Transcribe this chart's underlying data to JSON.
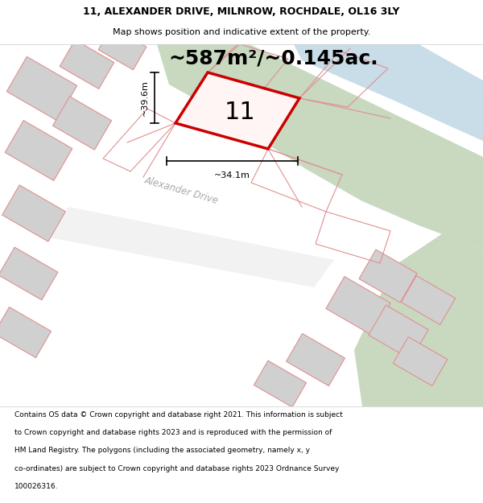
{
  "title_line1": "11, ALEXANDER DRIVE, MILNROW, ROCHDALE, OL16 3LY",
  "title_line2": "Map shows position and indicative extent of the property.",
  "area_text": "~587m²/~0.145ac.",
  "property_number": "11",
  "dim_vertical": "~39.6m",
  "dim_horizontal": "~34.1m",
  "road_label": "Alexander Drive",
  "footer_lines": [
    "Contains OS data © Crown copyright and database right 2021. This information is subject",
    "to Crown copyright and database rights 2023 and is reproduced with the permission of",
    "HM Land Registry. The polygons (including the associated geometry, namely x, y",
    "co-ordinates) are subject to Crown copyright and database rights 2023 Ordnance Survey",
    "100026316."
  ],
  "map_bg": "#ffffff",
  "property_fill": "#fff5f5",
  "property_edge": "#cc0000",
  "green_area_color": "#c8d9c0",
  "blue_water_color": "#c8dde8",
  "building_fill": "#d0d0d0",
  "building_edge": "#e09090",
  "other_edge": "#e09090",
  "dim_line_color": "#000000",
  "title_fontsize": 9,
  "footer_fontsize": 6.5,
  "area_fontsize": 18,
  "number_fontsize": 22,
  "road_label_color": "#aaaaaa",
  "road_label_fontsize": 8.5
}
